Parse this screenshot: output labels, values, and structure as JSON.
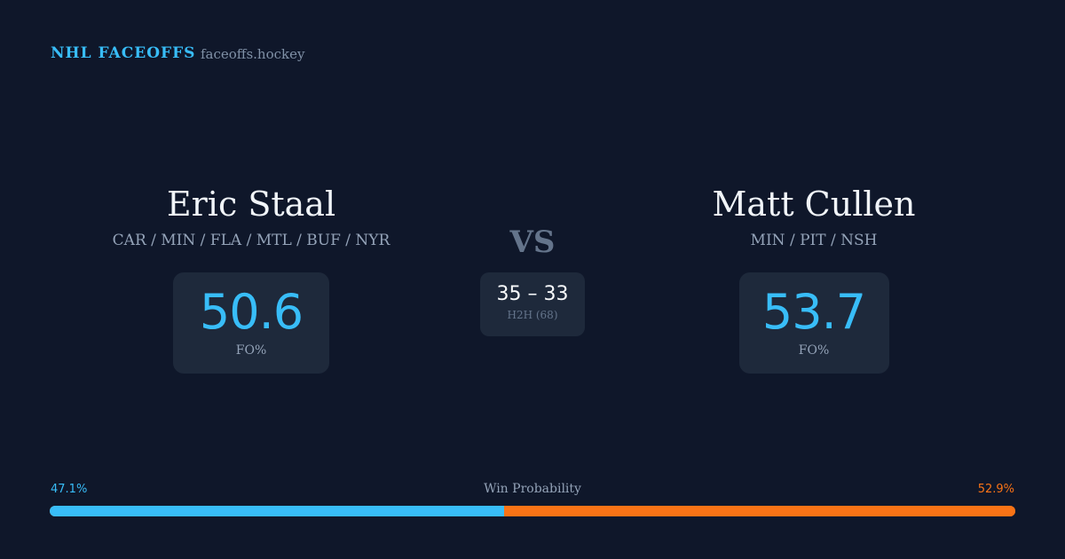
{
  "header": {
    "brand": "NHL FACEOFFS",
    "site": "faceoffs.hockey"
  },
  "player1": {
    "name": "Eric Staal",
    "teams": "CAR / MIN / FLA / MTL / BUF / NYR",
    "fo_pct": "50.6",
    "fo_label": "FO%"
  },
  "player2": {
    "name": "Matt Cullen",
    "teams": "MIN / PIT / NSH",
    "fo_pct": "53.7",
    "fo_label": "FO%"
  },
  "versus": {
    "label": "VS",
    "score": "35 – 33",
    "h2h": "H2H (68)"
  },
  "win_probability": {
    "label": "Win Probability",
    "left_pct": "47.1%",
    "right_pct": "52.9%",
    "left_value": 47.1,
    "right_value": 52.9,
    "colors": {
      "left": "#38bdf8",
      "right": "#f97316"
    }
  }
}
